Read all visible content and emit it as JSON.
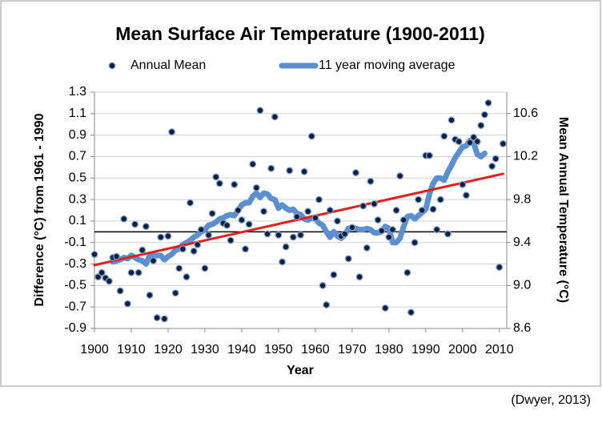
{
  "chart_data": {
    "type": "scatter",
    "title": "Mean Surface Air Temperature (1900-2011)",
    "x_label": "Year",
    "y_label": "Difference (°C) from 1961 - 1990",
    "y2_label": "Mean Annual Temperature (°C)",
    "x": [
      1900,
      1901,
      1902,
      1903,
      1904,
      1905,
      1906,
      1907,
      1908,
      1909,
      1910,
      1911,
      1912,
      1913,
      1914,
      1915,
      1916,
      1917,
      1918,
      1919,
      1920,
      1921,
      1922,
      1923,
      1924,
      1925,
      1926,
      1927,
      1928,
      1929,
      1930,
      1931,
      1932,
      1933,
      1934,
      1935,
      1936,
      1937,
      1938,
      1939,
      1940,
      1941,
      1942,
      1943,
      1944,
      1945,
      1946,
      1947,
      1948,
      1949,
      1950,
      1951,
      1952,
      1953,
      1954,
      1955,
      1956,
      1957,
      1958,
      1959,
      1960,
      1961,
      1962,
      1963,
      1964,
      1965,
      1966,
      1967,
      1968,
      1969,
      1970,
      1971,
      1972,
      1973,
      1974,
      1975,
      1976,
      1977,
      1978,
      1979,
      1980,
      1981,
      1982,
      1983,
      1984,
      1985,
      1986,
      1987,
      1988,
      1989,
      1990,
      1991,
      1992,
      1993,
      1994,
      1995,
      1996,
      1997,
      1998,
      1999,
      2000,
      2001,
      2002,
      2003,
      2004,
      2005,
      2006,
      2007,
      2008,
      2009,
      2010,
      2011
    ],
    "xlim": [
      1900,
      2012
    ],
    "xticks": [
      1900,
      1910,
      1920,
      1930,
      1940,
      1950,
      1960,
      1970,
      1980,
      1990,
      2000,
      2010
    ],
    "ylim": [
      -0.9,
      1.3
    ],
    "yticks": [
      -0.9,
      -0.7,
      -0.5,
      -0.3,
      -0.1,
      0.1,
      0.3,
      0.5,
      0.7,
      0.9,
      1.1,
      1.3
    ],
    "y2lim": [
      8.6,
      10.8
    ],
    "y2ticks": [
      8.6,
      {
        "value": 9,
        "label": "9.0"
      },
      9.4,
      9.8,
      10.2,
      10.6
    ],
    "grid": true,
    "legend": "top",
    "series": [
      {
        "name": "Annual Mean",
        "type": "scatter",
        "color": "#0f1f3d",
        "values": [
          -0.21,
          -0.42,
          -0.38,
          -0.43,
          -0.46,
          -0.24,
          -0.23,
          -0.55,
          0.12,
          -0.67,
          -0.38,
          0.07,
          -0.38,
          -0.17,
          0.05,
          -0.59,
          -0.27,
          -0.8,
          -0.05,
          -0.81,
          -0.04,
          0.93,
          -0.57,
          -0.34,
          -0.16,
          -0.42,
          0.27,
          -0.18,
          -0.12,
          0.02,
          -0.34,
          -0.03,
          0.17,
          0.51,
          0.45,
          0.08,
          0.06,
          -0.08,
          0.44,
          0.2,
          0.11,
          -0.16,
          0.07,
          0.63,
          0.41,
          1.13,
          0.19,
          -0.02,
          0.59,
          1.07,
          -0.03,
          -0.28,
          -0.14,
          0.57,
          -0.05,
          0.14,
          -0.03,
          0.56,
          0.19,
          0.89,
          0.13,
          0.3,
          -0.5,
          -0.68,
          0.2,
          -0.4,
          0.1,
          -0.04,
          -0.02,
          -0.25,
          0.04,
          0.55,
          -0.42,
          0.24,
          -0.15,
          0.47,
          0.26,
          0.11,
          0.01,
          -0.71,
          -0.05,
          0.02,
          0.2,
          0.52,
          0.11,
          -0.38,
          -0.75,
          -0.1,
          0.3,
          0.2,
          0.71,
          0.71,
          0.21,
          0.02,
          0.3,
          0.89,
          -0.02,
          1.04,
          0.86,
          0.84,
          0.44,
          0.34,
          0.83,
          0.88,
          0.84,
          0.99,
          1.09,
          1.2,
          0.61,
          0.68,
          -0.33,
          0.82
        ]
      },
      {
        "name": "11 year moving average",
        "type": "line",
        "color": "#5b8fcf",
        "values": [
          null,
          null,
          null,
          null,
          null,
          -0.28,
          -0.27,
          -0.26,
          -0.24,
          -0.25,
          -0.22,
          -0.24,
          -0.26,
          -0.27,
          -0.3,
          -0.22,
          -0.22,
          -0.22,
          -0.22,
          -0.26,
          -0.23,
          -0.21,
          -0.17,
          -0.16,
          -0.12,
          -0.1,
          -0.08,
          -0.05,
          -0.03,
          0.0,
          0.02,
          0.06,
          0.07,
          0.09,
          0.12,
          0.13,
          0.15,
          0.16,
          0.15,
          0.2,
          0.25,
          0.27,
          0.27,
          0.33,
          0.36,
          0.32,
          0.36,
          0.35,
          0.31,
          0.3,
          0.22,
          0.25,
          0.22,
          0.2,
          0.21,
          0.17,
          0.16,
          0.12,
          0.11,
          0.13,
          0.12,
          0.08,
          0.06,
          0.0,
          -0.05,
          0.0,
          -0.04,
          -0.06,
          -0.03,
          0.03,
          0.04,
          0.03,
          0.02,
          0.02,
          0.03,
          0.02,
          -0.01,
          -0.01,
          0.0,
          0.05,
          0.03,
          -0.1,
          -0.1,
          -0.06,
          0.05,
          0.14,
          0.15,
          0.12,
          0.15,
          0.18,
          0.21,
          0.35,
          0.45,
          0.5,
          0.5,
          0.48,
          0.56,
          0.62,
          0.69,
          0.74,
          0.79,
          0.8,
          0.85,
          0.83,
          0.72,
          0.7,
          0.73,
          null,
          null,
          null,
          null,
          null
        ]
      }
    ],
    "trend": {
      "x": [
        1900,
        2011
      ],
      "values": [
        -0.31,
        0.54
      ],
      "color": "#e0201b"
    },
    "reference_line": {
      "value": 0,
      "color": "#000000"
    }
  },
  "source": "(Dwyer, 2013)"
}
